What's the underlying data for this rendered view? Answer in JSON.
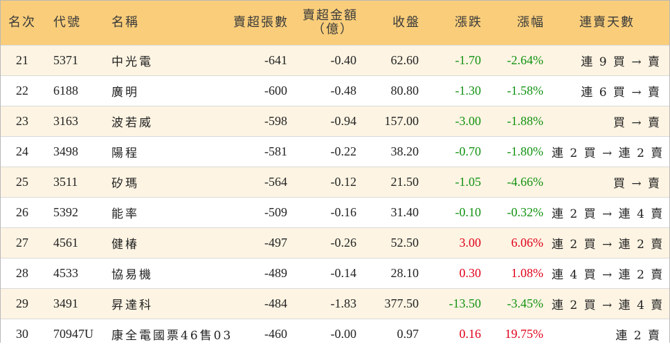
{
  "headers": {
    "rank": "名次",
    "code": "代號",
    "name": "名稱",
    "net_sell_lots": "賣超張數",
    "net_sell_amount_line1": "賣超金額",
    "net_sell_amount_line2": "（億）",
    "close": "收盤",
    "change": "漲跌",
    "change_pct": "漲幅",
    "consecutive_days": "連賣天數"
  },
  "colors": {
    "header_bg": "#f9cd7a",
    "odd_row_bg": "#fdf4e3",
    "down": "#119211",
    "up": "#e0001a"
  },
  "rows": [
    {
      "rank": "21",
      "code": "5371",
      "name": "中光電",
      "lots": "-641",
      "amount": "-0.40",
      "close": "62.60",
      "change": "-1.70",
      "pct": "-2.64%",
      "days": "連 9 買 → 賣",
      "dir": "down"
    },
    {
      "rank": "22",
      "code": "6188",
      "name": "廣明",
      "lots": "-600",
      "amount": "-0.48",
      "close": "80.80",
      "change": "-1.30",
      "pct": "-1.58%",
      "days": "連 6 買 → 賣",
      "dir": "down"
    },
    {
      "rank": "23",
      "code": "3163",
      "name": "波若威",
      "lots": "-598",
      "amount": "-0.94",
      "close": "157.00",
      "change": "-3.00",
      "pct": "-1.88%",
      "days": "買 → 賣",
      "dir": "down"
    },
    {
      "rank": "24",
      "code": "3498",
      "name": "陽程",
      "lots": "-581",
      "amount": "-0.22",
      "close": "38.20",
      "change": "-0.70",
      "pct": "-1.80%",
      "days": "連 2 買 → 連 2 賣",
      "dir": "down"
    },
    {
      "rank": "25",
      "code": "3511",
      "name": "矽瑪",
      "lots": "-564",
      "amount": "-0.12",
      "close": "21.50",
      "change": "-1.05",
      "pct": "-4.66%",
      "days": "買 → 賣",
      "dir": "down"
    },
    {
      "rank": "26",
      "code": "5392",
      "name": "能率",
      "lots": "-509",
      "amount": "-0.16",
      "close": "31.40",
      "change": "-0.10",
      "pct": "-0.32%",
      "days": "連 2 買 → 連 4 賣",
      "dir": "down"
    },
    {
      "rank": "27",
      "code": "4561",
      "name": "健椿",
      "lots": "-497",
      "amount": "-0.26",
      "close": "52.50",
      "change": "3.00",
      "pct": "6.06%",
      "days": "連 2 買 → 連 2 賣",
      "dir": "up"
    },
    {
      "rank": "28",
      "code": "4533",
      "name": "協易機",
      "lots": "-489",
      "amount": "-0.14",
      "close": "28.10",
      "change": "0.30",
      "pct": "1.08%",
      "days": "連 4 買 → 連 2 賣",
      "dir": "up"
    },
    {
      "rank": "29",
      "code": "3491",
      "name": "昇達科",
      "lots": "-484",
      "amount": "-1.83",
      "close": "377.50",
      "change": "-13.50",
      "pct": "-3.45%",
      "days": "連 2 買 → 連 4 賣",
      "dir": "down"
    },
    {
      "rank": "30",
      "code": "70947U",
      "name": "康全電國票46售03",
      "lots": "-460",
      "amount": "-0.00",
      "close": "0.97",
      "change": "0.16",
      "pct": "19.75%",
      "days": "連 2 賣",
      "dir": "up"
    }
  ]
}
